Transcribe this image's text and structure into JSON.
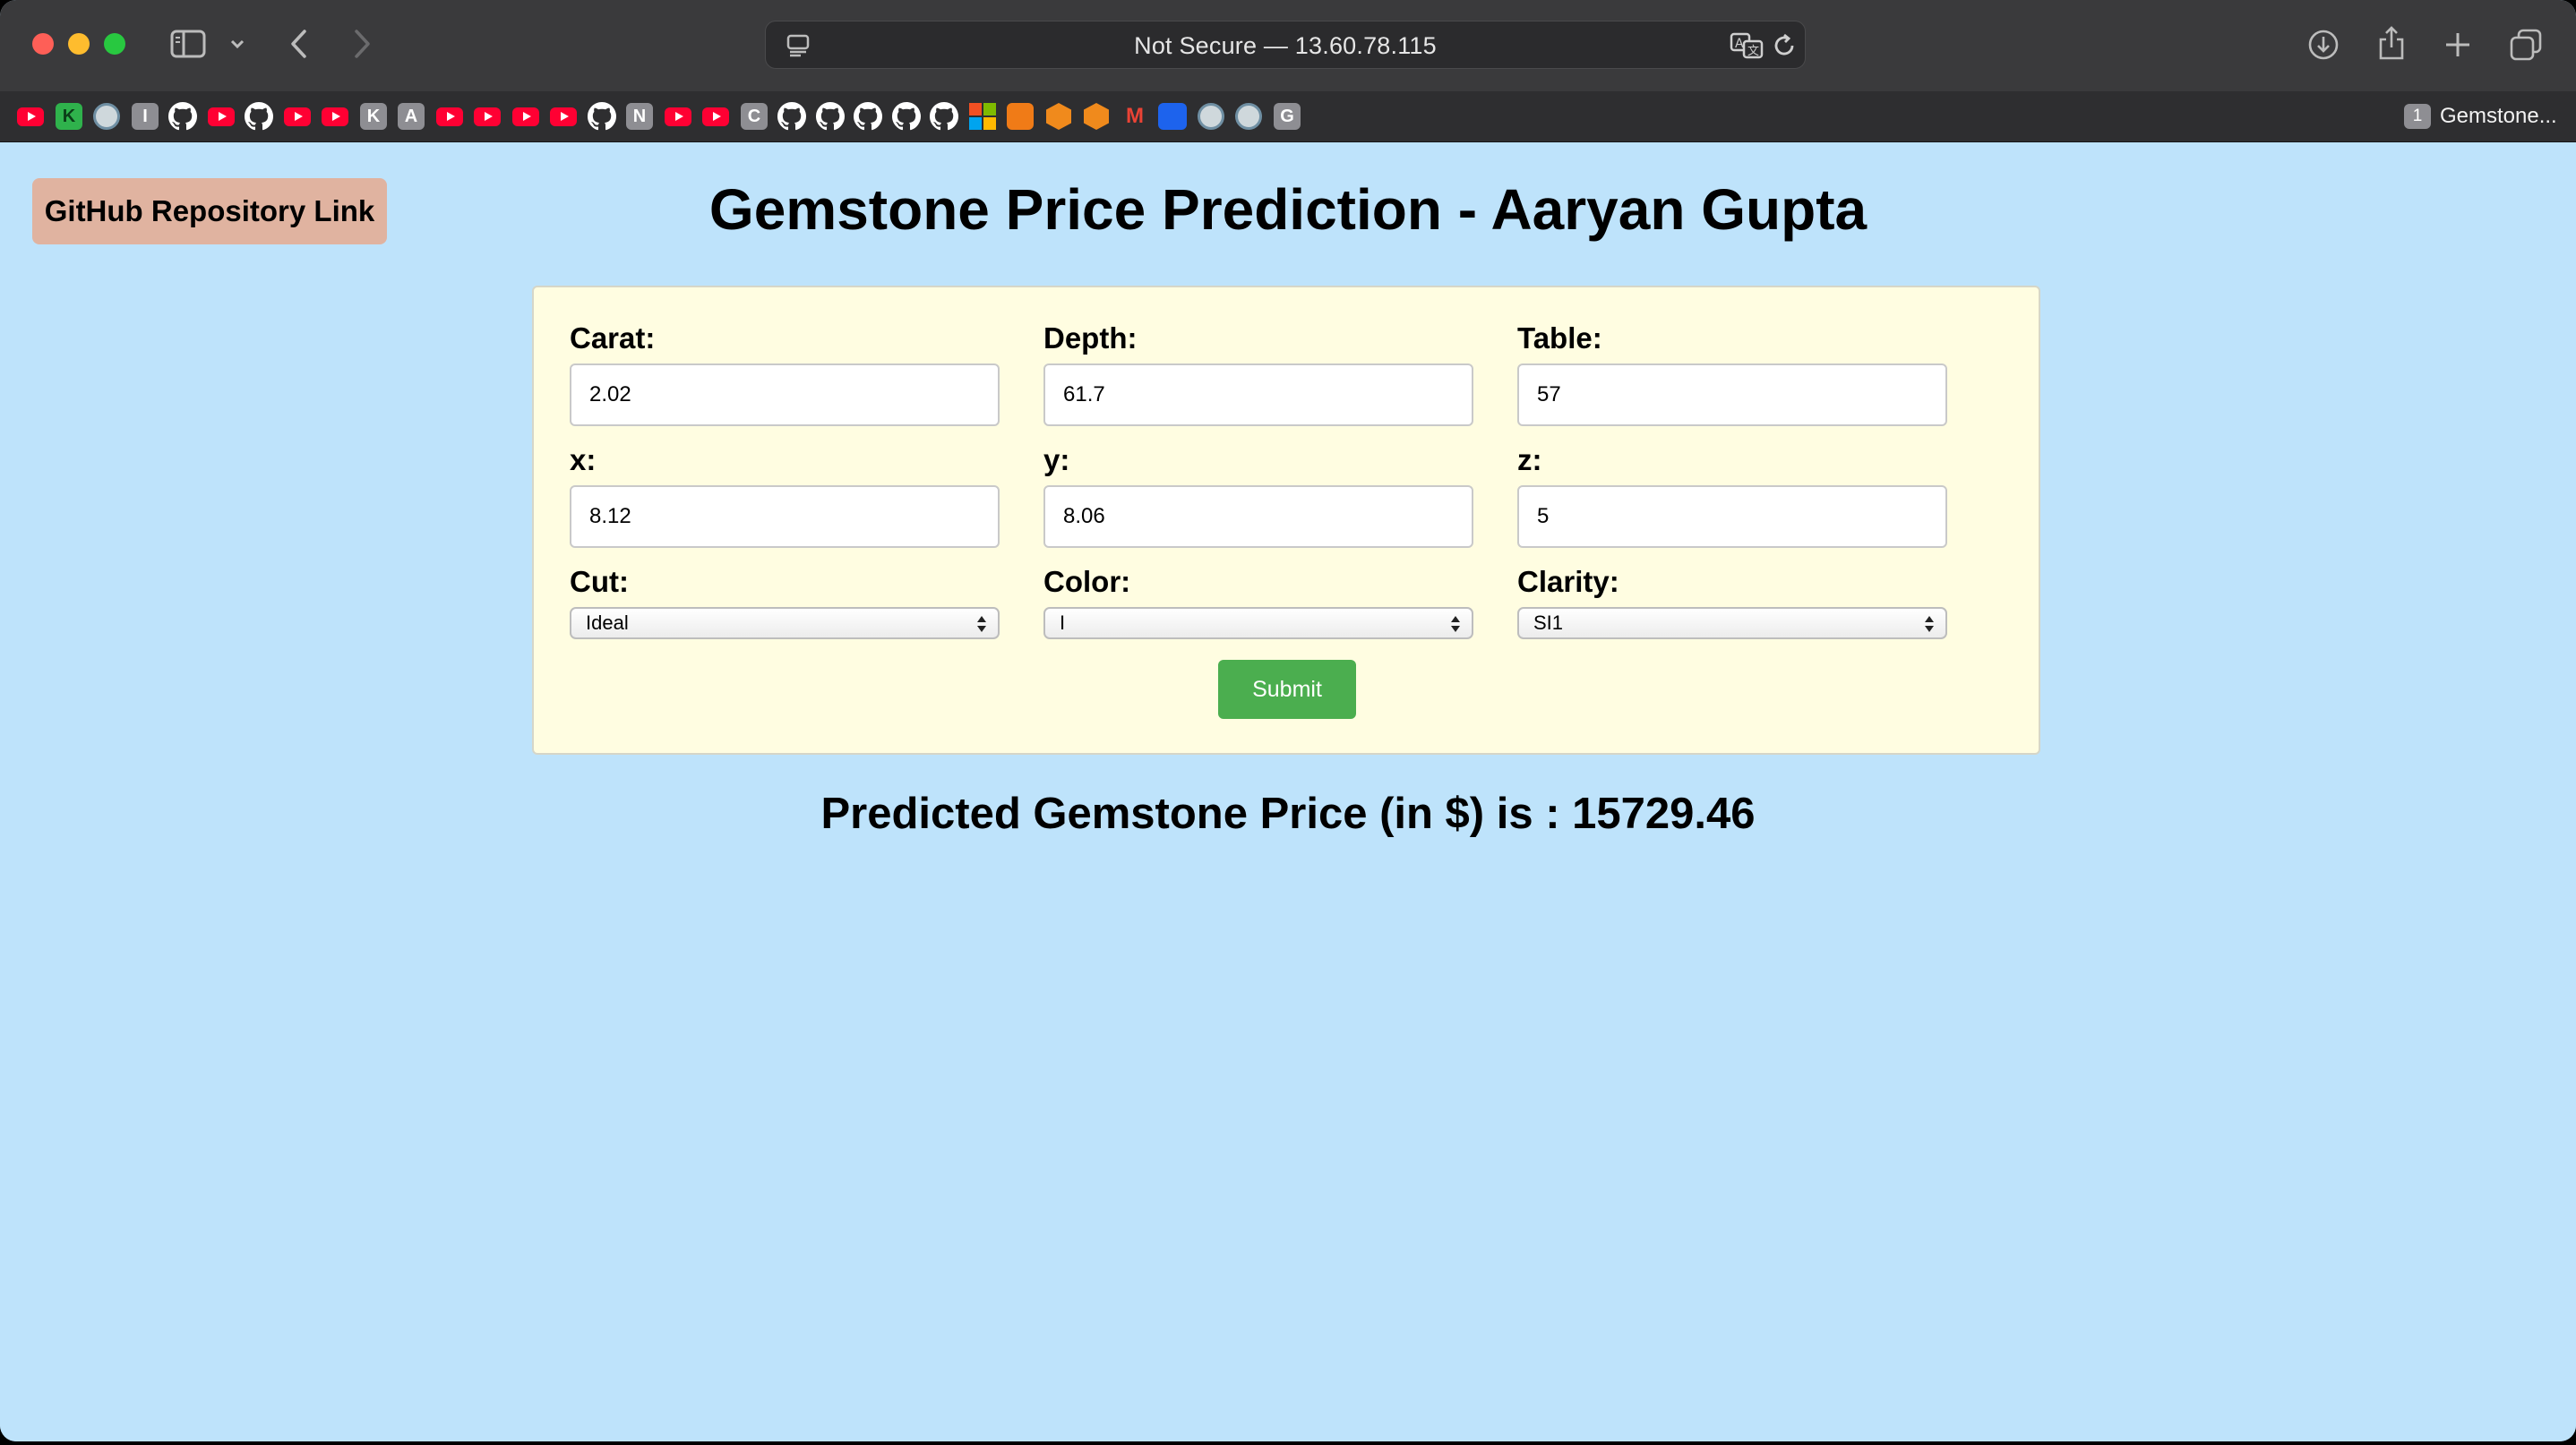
{
  "browser": {
    "address_bar_text": "Not Secure — 13.60.78.115",
    "tab_group_count": "1",
    "tab_group_label": "Gemstone...",
    "favorites": [
      {
        "icon": "youtube-icon"
      },
      {
        "icon": "k-letter-icon",
        "letter": "K"
      },
      {
        "icon": "ring-icon"
      },
      {
        "icon": "letter-icon",
        "letter": "I"
      },
      {
        "icon": "github-icon"
      },
      {
        "icon": "youtube-icon"
      },
      {
        "icon": "github-icon"
      },
      {
        "icon": "youtube-icon"
      },
      {
        "icon": "youtube-icon"
      },
      {
        "icon": "letter-icon",
        "letter": "K"
      },
      {
        "icon": "letter-icon",
        "letter": "A"
      },
      {
        "icon": "youtube-icon"
      },
      {
        "icon": "youtube-icon"
      },
      {
        "icon": "youtube-icon"
      },
      {
        "icon": "youtube-icon"
      },
      {
        "icon": "github-icon"
      },
      {
        "icon": "letter-icon",
        "letter": "N"
      },
      {
        "icon": "youtube-icon"
      },
      {
        "icon": "youtube-icon"
      },
      {
        "icon": "letter-icon",
        "letter": "C"
      },
      {
        "icon": "github-icon"
      },
      {
        "icon": "github-icon"
      },
      {
        "icon": "github-icon"
      },
      {
        "icon": "github-icon"
      },
      {
        "icon": "github-icon"
      },
      {
        "icon": "microsoft-icon"
      },
      {
        "icon": "orange-square-icon"
      },
      {
        "icon": "cube-icon"
      },
      {
        "icon": "cube-icon"
      },
      {
        "icon": "gmail-icon",
        "letter": "M"
      },
      {
        "icon": "docker-icon"
      },
      {
        "icon": "ring-icon"
      },
      {
        "icon": "ring-icon"
      },
      {
        "icon": "letter-icon",
        "letter": "G"
      }
    ]
  },
  "page": {
    "github_link_label": "GitHub Repository Link",
    "title": "Gemstone Price Prediction - Aaryan Gupta",
    "fields": {
      "carat": {
        "label": "Carat:",
        "value": "2.02"
      },
      "depth": {
        "label": "Depth:",
        "value": "61.7"
      },
      "table": {
        "label": "Table:",
        "value": "57"
      },
      "x": {
        "label": "x:",
        "value": "8.12"
      },
      "y": {
        "label": "y:",
        "value": "8.06"
      },
      "z": {
        "label": "z:",
        "value": "5"
      },
      "cut": {
        "label": "Cut:",
        "value": "Ideal"
      },
      "color": {
        "label": "Color:",
        "value": "I"
      },
      "clarity": {
        "label": "Clarity:",
        "value": "SI1"
      }
    },
    "submit_label": "Submit",
    "result_text": "Predicted Gemstone Price (in $) is : 15729.46"
  },
  "colors": {
    "page_background": "#bee3fb",
    "form_background": "#fffde1",
    "github_button": "#e0b3a0",
    "submit_button": "#4bae4f"
  }
}
